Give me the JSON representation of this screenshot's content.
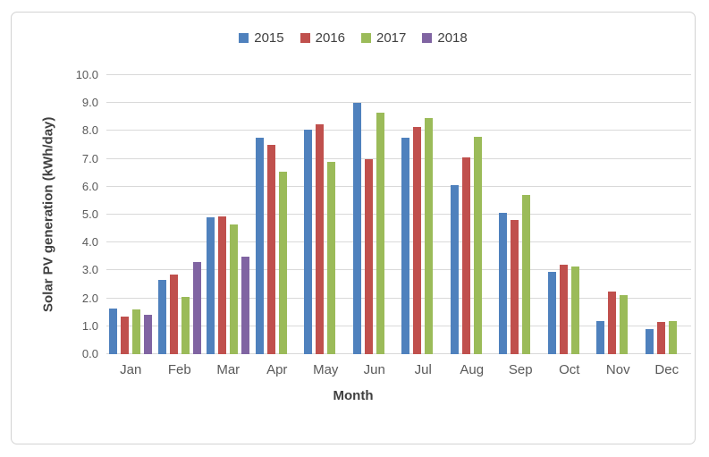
{
  "chart_data": {
    "type": "bar",
    "title": "",
    "categories": [
      "Jan",
      "Feb",
      "Mar",
      "Apr",
      "May",
      "Jun",
      "Jul",
      "Aug",
      "Sep",
      "Oct",
      "Nov",
      "Dec"
    ],
    "series": [
      {
        "name": "2015",
        "color": "#4F81BD",
        "values": [
          1.65,
          2.65,
          4.9,
          7.75,
          8.05,
          9.0,
          7.75,
          6.05,
          5.05,
          2.95,
          1.2,
          0.9
        ]
      },
      {
        "name": "2016",
        "color": "#C0504D",
        "values": [
          1.35,
          2.85,
          4.95,
          7.5,
          8.25,
          7.0,
          8.15,
          7.05,
          4.8,
          3.2,
          2.25,
          1.15
        ]
      },
      {
        "name": "2017",
        "color": "#9BBB59",
        "values": [
          1.6,
          2.05,
          4.65,
          6.55,
          6.9,
          8.65,
          8.45,
          7.8,
          5.7,
          3.15,
          2.1,
          1.2
        ]
      },
      {
        "name": "2018",
        "color": "#8064A2",
        "values": [
          1.4,
          3.3,
          3.5,
          null,
          null,
          null,
          null,
          null,
          null,
          null,
          null,
          null
        ]
      }
    ],
    "xlabel": "Month",
    "ylabel": "Solar PV generation (kWh/day)",
    "ylim": [
      0,
      10
    ],
    "ytick_step": 1,
    "ytick_labels": [
      "0.0",
      "1.0",
      "2.0",
      "3.0",
      "4.0",
      "5.0",
      "6.0",
      "7.0",
      "8.0",
      "9.0",
      "10.0"
    ],
    "grid": true,
    "legend_position": "top",
    "text_color": "#595959",
    "axis_title_color": "#404040",
    "gridline_color": "#d9d9d9"
  }
}
